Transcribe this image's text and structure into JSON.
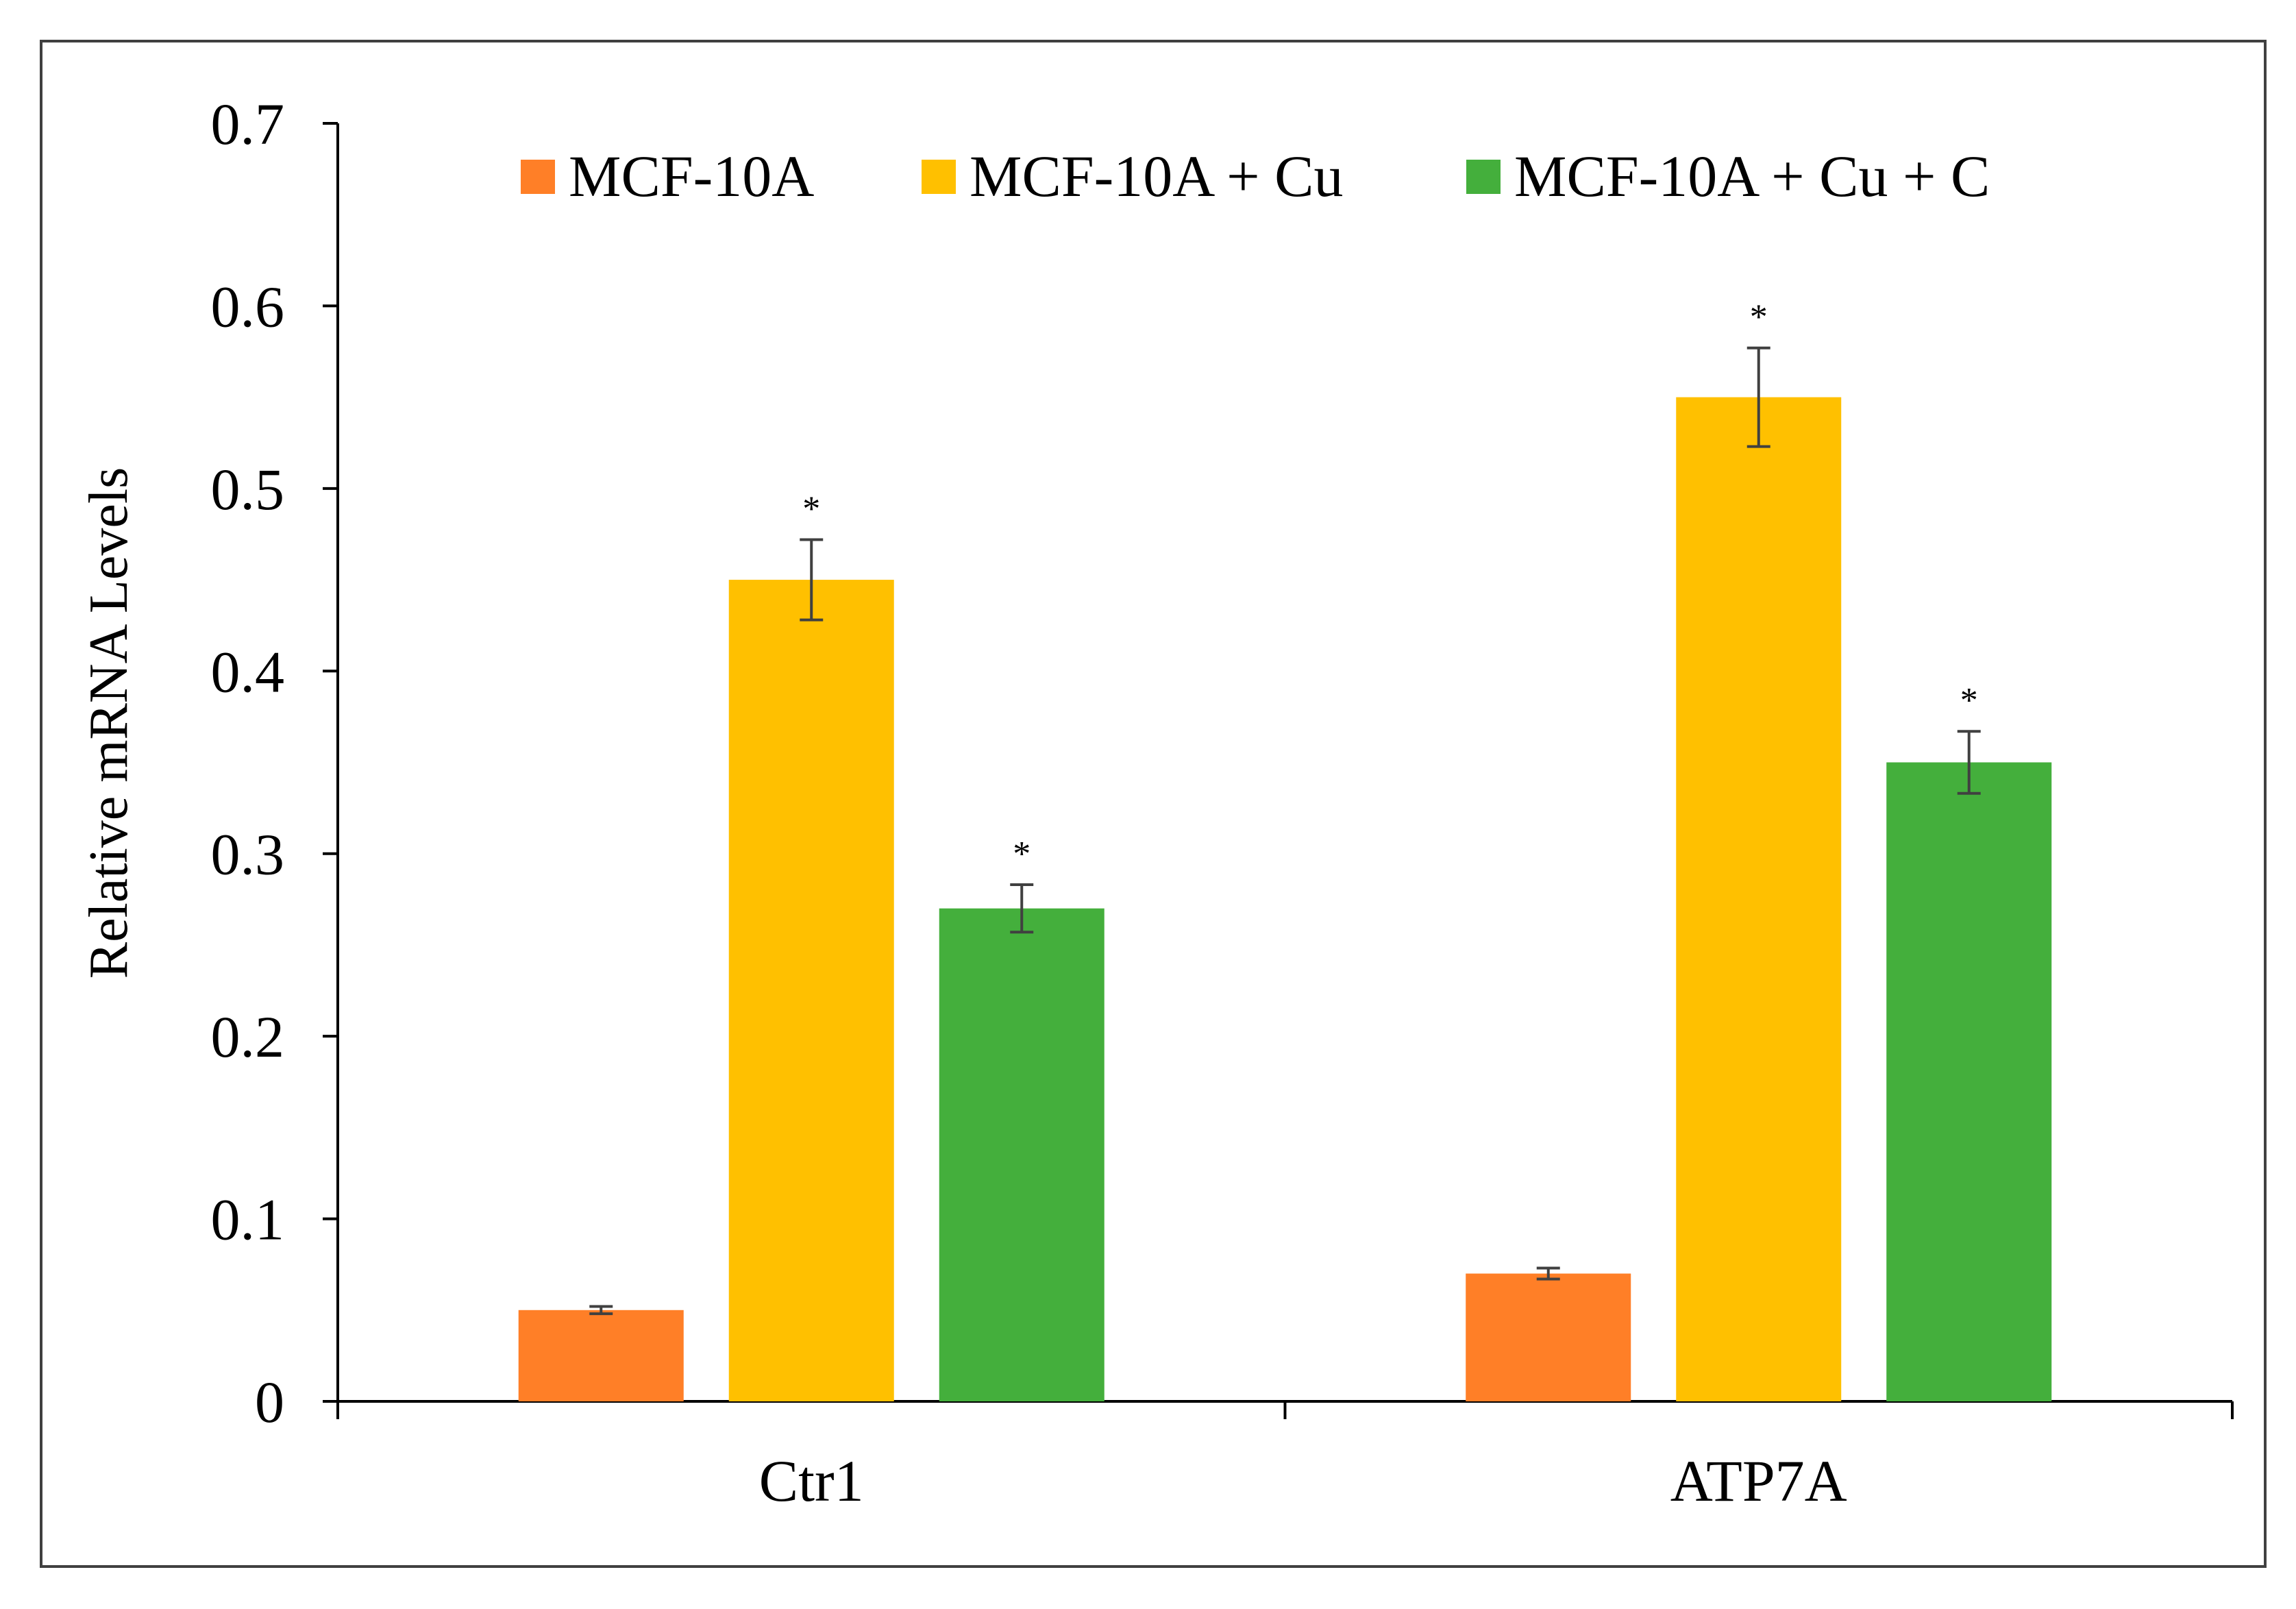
{
  "chart_data": {
    "type": "bar",
    "title": "",
    "xlabel": "",
    "ylabel": "Relative mRNA Levels",
    "ylim": [
      0,
      0.7
    ],
    "yticks": [
      0,
      0.1,
      0.2,
      0.3,
      0.4,
      0.5,
      0.6,
      0.7
    ],
    "ytick_labels": [
      "0",
      "0.1",
      "0.2",
      "0.3",
      "0.4",
      "0.5",
      "0.6",
      "0.7"
    ],
    "categories": [
      "Ctr1",
      "ATP7A"
    ],
    "legend_position": "top",
    "grid": false,
    "series": [
      {
        "name": "MCF-10A",
        "color": "#FF7F27",
        "values": [
          0.05,
          0.07
        ],
        "errors": [
          0.002,
          0.003
        ],
        "significance": [
          "",
          ""
        ]
      },
      {
        "name": "MCF-10A + Cu",
        "color": "#FFC000",
        "values": [
          0.45,
          0.55
        ],
        "errors": [
          0.022,
          0.027
        ],
        "significance": [
          "*",
          "*"
        ]
      },
      {
        "name": "MCF-10A + Cu + C",
        "color": "#44AF3C",
        "values": [
          0.27,
          0.35
        ],
        "errors": [
          0.013,
          0.017
        ],
        "significance": [
          "*",
          "*"
        ]
      }
    ]
  }
}
